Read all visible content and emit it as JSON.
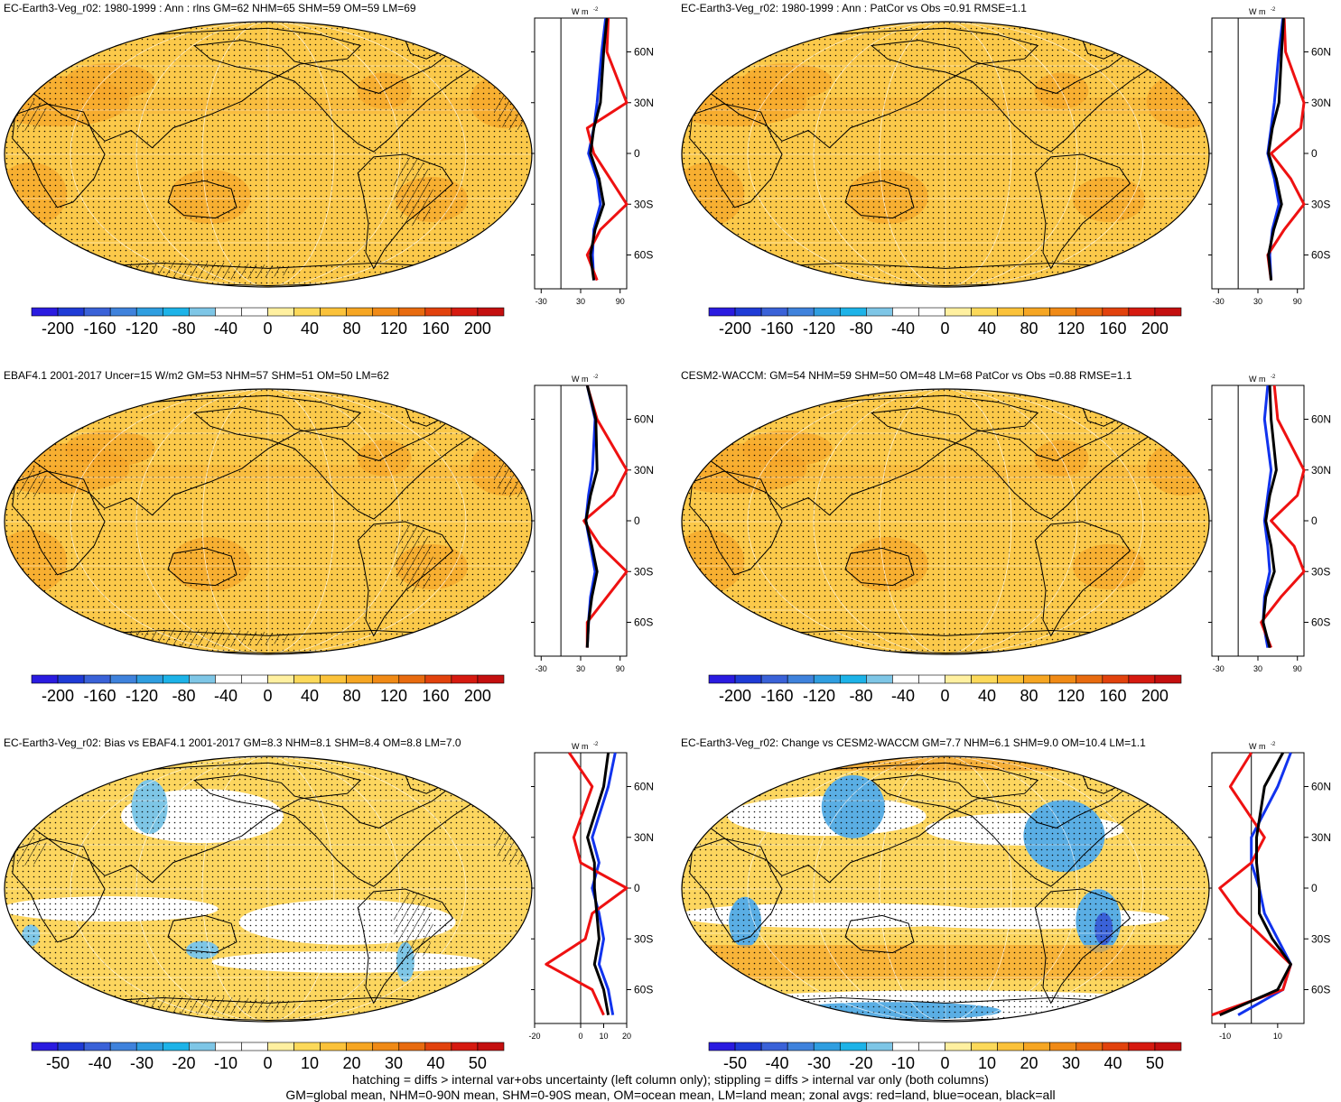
{
  "panels": [
    {
      "id": "p1",
      "title": "EC-Earth3-Veg_r02: 1980-1999 : Ann : rlns GM=62 NHM=65 SHM=59 OM=59 LM=69",
      "scale": "abs",
      "zonal_ticks": [
        "-30",
        "30",
        "90"
      ],
      "hatch": true
    },
    {
      "id": "p2",
      "title": "EC-Earth3-Veg_r02: 1980-1999 : Ann : PatCor vs Obs =0.91 RMSE=1.1",
      "scale": "abs",
      "zonal_ticks": [
        "-30",
        "30",
        "90"
      ],
      "hatch": false
    },
    {
      "id": "p3",
      "title": "EBAF4.1 2001-2017 Uncer=15 W/m2 GM=53 NHM=57 SHM=51 OM=50 LM=62",
      "scale": "abs",
      "zonal_ticks": [
        "-30",
        "30",
        "90"
      ],
      "hatch": true
    },
    {
      "id": "p4",
      "title": "CESM2-WACCM: GM=54 NHM=59 SHM=50 OM=48 LM=68 PatCor vs Obs =0.88 RMSE=1.1",
      "scale": "abs",
      "zonal_ticks": [
        "-30",
        "30",
        "90"
      ],
      "hatch": false
    },
    {
      "id": "p5",
      "title": "EC-Earth3-Veg_r02: Bias vs EBAF4.1 2001-2017 GM=8.3 NHM=8.1 SHM=8.4 OM=8.8 LM=7.0",
      "scale": "diff",
      "zonal_ticks": [
        "-20",
        "0",
        "10",
        "20"
      ],
      "hatch": true
    },
    {
      "id": "p6",
      "title": "EC-Earth3-Veg_r02: Change vs CESM2-WACCM GM=7.7 NHM=6.1 SHM=9.0 OM=10.4 LM=1.1",
      "scale": "diff",
      "zonal_ticks": [
        "-10",
        "10"
      ],
      "hatch": false
    }
  ],
  "zonal_unit": "W m",
  "zonal_unit_exp": "-2",
  "lat_labels": [
    "60N",
    "30N",
    "0",
    "30S",
    "60S"
  ],
  "colorbars": {
    "abs": {
      "labels": [
        "-200",
        "-160",
        "-120",
        "-80",
        "-40",
        "0",
        "40",
        "80",
        "120",
        "160",
        "200"
      ]
    },
    "diff": {
      "labels": [
        "-50",
        "-40",
        "-30",
        "-20",
        "-10",
        "0",
        "10",
        "20",
        "30",
        "40",
        "50"
      ]
    },
    "colors": [
      "#2a1be0",
      "#1f3bd6",
      "#3a62d8",
      "#3f82dc",
      "#2f9ee0",
      "#1db3e8",
      "#7ec6e6",
      "#ffffff",
      "#ffffff",
      "#fff0a0",
      "#fcd95a",
      "#fbc23a",
      "#f6a623",
      "#f08a16",
      "#e86b0f",
      "#e2420d",
      "#d61a10",
      "#c40f0f"
    ]
  },
  "colors": {
    "land": "#ee1111",
    "ocean": "#1133ee",
    "all": "#000000",
    "field": "#fbc94a",
    "land_map": "#f6a52a"
  },
  "footer": [
    "hatching = diffs > internal var+obs uncertainty (left column only); stippling = diffs > internal var only (both columns)",
    "GM=global mean, NHM=0-90N mean, SHM=0-90S mean, OM=ocean mean, LM=land mean; zonal avgs: red=land, blue=ocean, black=all"
  ],
  "chart_data": [
    {
      "type": "heatmap",
      "title": "EC-Earth3-Veg_r02: 1980-1999 : Ann : rlns GM=62 NHM=65 SHM=59 OM=59 LM=69",
      "colorbar_range": [
        -200,
        200
      ],
      "zonal_mean": {
        "lat": [
          80,
          60,
          30,
          15,
          0,
          -15,
          -30,
          -45,
          -60,
          -75
        ],
        "land": [
          72,
          70,
          110,
          40,
          50,
          75,
          110,
          60,
          40,
          55
        ],
        "ocean": [
          68,
          62,
          55,
          50,
          42,
          55,
          60,
          50,
          48,
          50
        ],
        "all": [
          70,
          65,
          60,
          50,
          45,
          58,
          65,
          52,
          45,
          50
        ]
      }
    },
    {
      "type": "heatmap",
      "title": "EC-Earth3-Veg_r02: 1980-1999 : Ann : PatCor vs Obs =0.91 RMSE=1.1",
      "colorbar_range": [
        -200,
        200
      ],
      "zonal_mean": {
        "lat": [
          80,
          60,
          30,
          15,
          0,
          -15,
          -30,
          -45,
          -60,
          -75
        ],
        "land": [
          70,
          72,
          115,
          95,
          50,
          80,
          115,
          70,
          45,
          50
        ],
        "ocean": [
          68,
          62,
          55,
          50,
          45,
          55,
          62,
          52,
          48,
          50
        ],
        "all": [
          69,
          66,
          62,
          52,
          46,
          58,
          66,
          54,
          46,
          50
        ]
      }
    },
    {
      "type": "heatmap",
      "title": "EBAF4.1 2001-2017 Uncer=15 W/m2 GM=53 NHM=57 SHM=51 OM=50 LM=62",
      "colorbar_range": [
        -200,
        200
      ],
      "zonal_mean": {
        "lat": [
          80,
          60,
          30,
          15,
          0,
          -15,
          -30,
          -45,
          -60,
          -75
        ],
        "land": [
          40,
          55,
          100,
          80,
          35,
          60,
          100,
          70,
          40,
          40
        ],
        "ocean": [
          40,
          52,
          48,
          42,
          38,
          45,
          52,
          45,
          42,
          40
        ],
        "all": [
          40,
          53,
          55,
          45,
          38,
          47,
          55,
          47,
          42,
          40
        ]
      }
    },
    {
      "type": "heatmap",
      "title": "CESM2-WACCM: GM=54 NHM=59 SHM=50 OM=48 LM=68 PatCor vs Obs =0.88 RMSE=1.1",
      "colorbar_range": [
        -200,
        200
      ],
      "zonal_mean": {
        "lat": [
          80,
          60,
          30,
          15,
          0,
          -15,
          -30,
          -45,
          -60,
          -75
        ],
        "land": [
          55,
          60,
          105,
          90,
          50,
          85,
          110,
          65,
          35,
          50
        ],
        "ocean": [
          45,
          40,
          50,
          45,
          40,
          45,
          48,
          40,
          38,
          45
        ],
        "all": [
          48,
          50,
          58,
          48,
          42,
          50,
          55,
          42,
          38,
          48
        ]
      }
    },
    {
      "type": "heatmap",
      "title": "EC-Earth3-Veg_r02: Bias vs EBAF4.1 2001-2017 GM=8.3 NHM=8.1 SHM=8.4 OM=8.8 LM=7.0",
      "colorbar_range": [
        -50,
        50
      ],
      "zonal_mean": {
        "lat": [
          80,
          60,
          30,
          15,
          0,
          -15,
          -30,
          -45,
          -60,
          -75
        ],
        "land": [
          -5,
          5,
          -3,
          0,
          20,
          5,
          2,
          -15,
          5,
          10
        ],
        "ocean": [
          15,
          12,
          5,
          8,
          5,
          8,
          10,
          8,
          12,
          14
        ],
        "all": [
          12,
          10,
          3,
          6,
          6,
          7,
          8,
          6,
          10,
          12
        ]
      }
    },
    {
      "type": "heatmap",
      "title": "EC-Earth3-Veg_r02: Change vs CESM2-WACCM GM=7.7 NHM=6.1 SHM=9.0 OM=10.4 LM=1.1",
      "colorbar_range": [
        -50,
        50
      ],
      "zonal_mean": {
        "lat": [
          80,
          60,
          30,
          15,
          0,
          -15,
          -30,
          -45,
          -60,
          -75
        ],
        "land": [
          0,
          -8,
          5,
          0,
          -12,
          -5,
          5,
          15,
          12,
          -15
        ],
        "ocean": [
          15,
          10,
          0,
          0,
          3,
          5,
          10,
          15,
          12,
          -5
        ],
        "all": [
          12,
          5,
          2,
          2,
          3,
          3,
          8,
          15,
          10,
          -12
        ]
      }
    }
  ]
}
